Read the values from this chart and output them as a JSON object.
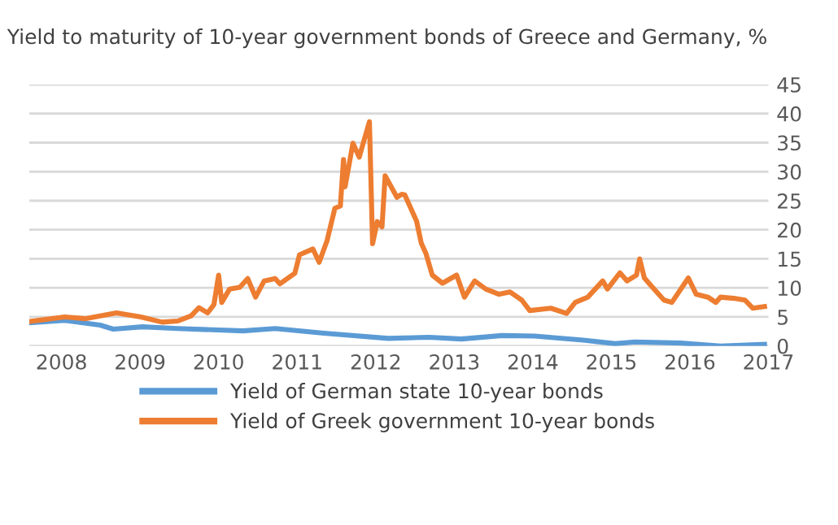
{
  "chart_data": {
    "type": "line",
    "title": "Yield to maturity of 10-year government bonds of Greece and Germany, %",
    "xlim": [
      2007.59,
      2017.0
    ],
    "xticks": [
      2008,
      2009,
      2010,
      2011,
      2012,
      2013,
      2014,
      2015,
      2016,
      2017
    ],
    "ylim": [
      0,
      45
    ],
    "yticks": [
      0,
      5,
      10,
      15,
      20,
      25,
      30,
      35,
      40,
      45
    ],
    "grid": "y",
    "legend": "bottom",
    "marker": "none",
    "line_style": "solid",
    "series": [
      {
        "name": "Yield of German state 10-year bonds",
        "color": "#5b9bd5",
        "x": [
          2007.59,
          2008.04,
          2008.49,
          2008.66,
          2009.03,
          2009.48,
          2010.31,
          2010.72,
          2011.34,
          2012.16,
          2012.68,
          2013.09,
          2013.61,
          2014.02,
          2014.64,
          2015.05,
          2015.3,
          2015.88,
          2016.39,
          2016.95
        ],
        "values": [
          4.0,
          4.4,
          3.6,
          2.9,
          3.3,
          3.0,
          2.6,
          3.0,
          2.2,
          1.3,
          1.5,
          1.2,
          1.8,
          1.7,
          1.0,
          0.4,
          0.7,
          0.5,
          0.0,
          0.3
        ]
      },
      {
        "name": "Yield of Greek government 10-year bonds",
        "color": "#ed7d31",
        "x": [
          2007.59,
          2008.04,
          2008.31,
          2008.7,
          2009.01,
          2009.28,
          2009.48,
          2009.65,
          2009.75,
          2009.86,
          2009.94,
          2010.0,
          2010.04,
          2010.14,
          2010.27,
          2010.37,
          2010.47,
          2010.58,
          2010.72,
          2010.78,
          2010.97,
          2011.03,
          2011.2,
          2011.28,
          2011.38,
          2011.48,
          2011.55,
          2011.59,
          2011.61,
          2011.71,
          2011.79,
          2011.86,
          2011.92,
          2011.96,
          2012.02,
          2012.08,
          2012.12,
          2012.27,
          2012.33,
          2012.37,
          2012.52,
          2012.58,
          2012.64,
          2012.72,
          2012.85,
          2013.03,
          2013.13,
          2013.26,
          2013.4,
          2013.57,
          2013.71,
          2013.86,
          2013.96,
          2014.23,
          2014.43,
          2014.54,
          2014.7,
          2014.89,
          2014.95,
          2015.11,
          2015.2,
          2015.32,
          2015.36,
          2015.42,
          2015.51,
          2015.67,
          2015.77,
          2015.98,
          2016.08,
          2016.23,
          2016.33,
          2016.39,
          2016.56,
          2016.7,
          2016.8,
          2016.95
        ],
        "values": [
          4.2,
          5.0,
          4.7,
          5.7,
          5.0,
          4.1,
          4.3,
          5.2,
          6.6,
          5.7,
          7.1,
          12.2,
          7.5,
          9.8,
          10.1,
          11.6,
          8.4,
          11.2,
          11.6,
          10.7,
          12.5,
          15.7,
          16.7,
          14.4,
          18.1,
          23.7,
          24.1,
          32.1,
          27.4,
          34.9,
          32.5,
          35.8,
          38.6,
          17.6,
          21.4,
          20.5,
          29.3,
          25.6,
          26.1,
          26.0,
          21.5,
          17.7,
          15.9,
          12.2,
          10.8,
          12.2,
          8.4,
          11.2,
          9.8,
          8.9,
          9.3,
          7.9,
          6.1,
          6.5,
          5.6,
          7.5,
          8.4,
          11.2,
          9.8,
          12.6,
          11.2,
          12.2,
          15.0,
          11.7,
          10.3,
          7.9,
          7.5,
          11.7,
          8.9,
          8.4,
          7.5,
          8.4,
          8.2,
          7.9,
          6.5,
          6.8
        ]
      }
    ]
  }
}
